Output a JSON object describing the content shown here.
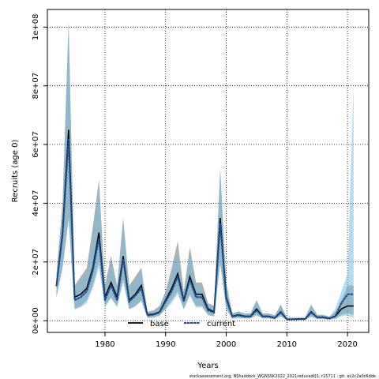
{
  "chart_data": {
    "type": "line",
    "title": "",
    "xlabel": "Years",
    "ylabel": "Recruits (age 0)",
    "xlim": [
      1970.5,
      2023.5
    ],
    "ylim": [
      -4000000,
      106000000
    ],
    "x_ticks": [
      1980,
      1990,
      2000,
      2010,
      2020
    ],
    "x_tick_labels": [
      "1980",
      "1990",
      "2000",
      "2010",
      "2020"
    ],
    "y_ticks": [
      0,
      20000000,
      40000000,
      60000000,
      80000000,
      100000000
    ],
    "y_tick_labels": [
      "0e+00",
      "2e+07",
      "4e+07",
      "6e+07",
      "8e+07",
      "1e+08"
    ],
    "grid": true,
    "legend_position": "bottom",
    "legend": [
      {
        "label": "base",
        "color": "#000000",
        "style": "solid"
      },
      {
        "label": "current",
        "color": "#1f4e8c",
        "style": "dotted"
      }
    ],
    "x": [
      1972,
      1973,
      1974,
      1975,
      1976,
      1977,
      1978,
      1979,
      1980,
      1981,
      1982,
      1983,
      1984,
      1985,
      1986,
      1987,
      1988,
      1989,
      1990,
      1991,
      1992,
      1993,
      1994,
      1995,
      1996,
      1997,
      1998,
      1999,
      2000,
      2001,
      2002,
      2003,
      2004,
      2005,
      2006,
      2007,
      2008,
      2009,
      2010,
      2011,
      2012,
      2013,
      2014,
      2015,
      2016,
      2017,
      2018,
      2019,
      2020,
      2021
    ],
    "series": [
      {
        "name": "base",
        "color": "#000000",
        "style": "solid",
        "values": [
          12000000,
          30000000,
          65000000,
          8000000,
          9000000,
          11000000,
          18000000,
          30000000,
          8000000,
          13000000,
          8000000,
          22000000,
          7000000,
          9000000,
          12000000,
          2000000,
          2200000,
          3000000,
          7000000,
          11000000,
          16000000,
          7000000,
          15000000,
          9000000,
          9000000,
          4000000,
          3000000,
          35000000,
          8000000,
          1500000,
          2000000,
          1500000,
          1500000,
          4000000,
          1500000,
          1500000,
          1000000,
          3000000,
          500000,
          500000,
          600000,
          600000,
          3000000,
          1200000,
          1200000,
          800000,
          1500000,
          4000000,
          5000000,
          5000000
        ],
        "ci_low": [
          8000000,
          18000000,
          35000000,
          4000000,
          5000000,
          7000000,
          12000000,
          20000000,
          5000000,
          8000000,
          5000000,
          14000000,
          4000000,
          5000000,
          7000000,
          1000000,
          1200000,
          1800000,
          4000000,
          7000000,
          10000000,
          4000000,
          9000000,
          5000000,
          5000000,
          2000000,
          1500000,
          20000000,
          4000000,
          700000,
          1000000,
          800000,
          800000,
          2000000,
          800000,
          800000,
          500000,
          1500000,
          200000,
          200000,
          300000,
          300000,
          1500000,
          600000,
          600000,
          400000,
          700000,
          2000000,
          2500000,
          2000000
        ],
        "ci_high": [
          16000000,
          40000000,
          102000000,
          12000000,
          15000000,
          18000000,
          32000000,
          48000000,
          12000000,
          22000000,
          12000000,
          35000000,
          12000000,
          15000000,
          18000000,
          3000000,
          3500000,
          5000000,
          10000000,
          18000000,
          27000000,
          10000000,
          25000000,
          13000000,
          13000000,
          6000000,
          5000000,
          52000000,
          13000000,
          2500000,
          3200000,
          2500000,
          2500000,
          7000000,
          2500000,
          2500000,
          1800000,
          5500000,
          1000000,
          1000000,
          1000000,
          1000000,
          5500000,
          2000000,
          2000000,
          1400000,
          3000000,
          7000000,
          12000000,
          12000000
        ]
      },
      {
        "name": "current",
        "color": "#1f4e8c",
        "style": "dotted",
        "values": [
          12000000,
          29000000,
          62000000,
          7000000,
          8000000,
          10000000,
          17000000,
          28000000,
          7000000,
          12000000,
          7000000,
          21000000,
          6500000,
          8500000,
          11000000,
          1800000,
          2000000,
          2800000,
          6500000,
          10000000,
          15000000,
          6500000,
          14000000,
          8000000,
          8000000,
          3500000,
          2800000,
          33000000,
          7500000,
          1400000,
          1800000,
          1400000,
          1400000,
          3500000,
          1400000,
          1400000,
          900000,
          2800000,
          400000,
          400000,
          500000,
          500000,
          2800000,
          1100000,
          1100000,
          700000,
          1600000,
          6000000,
          9000000,
          9000000
        ],
        "ci_low": [
          8000000,
          18000000,
          34000000,
          3800000,
          4500000,
          6000000,
          11000000,
          18000000,
          4500000,
          7500000,
          4500000,
          13000000,
          3800000,
          4800000,
          6500000,
          900000,
          1000000,
          1600000,
          3800000,
          6000000,
          9000000,
          3800000,
          8500000,
          4500000,
          4500000,
          1800000,
          1400000,
          19000000,
          3800000,
          600000,
          900000,
          700000,
          700000,
          1800000,
          700000,
          700000,
          400000,
          1400000,
          150000,
          150000,
          200000,
          200000,
          1300000,
          500000,
          500000,
          300000,
          500000,
          1500000,
          1800000,
          800000
        ],
        "ci_high": [
          15000000,
          38000000,
          101000000,
          11000000,
          14000000,
          16000000,
          30000000,
          46000000,
          11000000,
          20000000,
          11000000,
          34000000,
          11000000,
          14000000,
          17000000,
          2800000,
          3200000,
          4500000,
          9500000,
          16000000,
          23000000,
          9500000,
          23000000,
          12000000,
          12000000,
          5500000,
          4500000,
          51000000,
          12000000,
          2300000,
          3000000,
          2300000,
          2300000,
          7000000,
          2300000,
          2300000,
          1700000,
          5000000,
          900000,
          900000,
          900000,
          900000,
          5000000,
          1800000,
          1800000,
          1300000,
          4000000,
          10000000,
          16000000,
          80000000
        ]
      }
    ]
  },
  "footer": "stockassessment.org, NShaddock_WGNSSK2022_2021reducedQ1, r15711 , git: ec2c2a0c6dde"
}
